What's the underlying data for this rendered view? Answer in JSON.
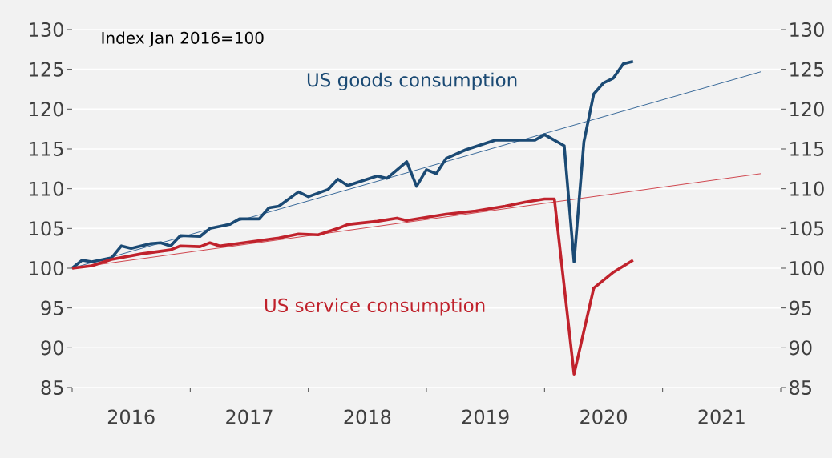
{
  "chart_data": {
    "type": "line",
    "annotations": [
      "Index Jan 2016=100"
    ],
    "xlim": [
      "2016-01",
      "2022-01"
    ],
    "xticks": [
      {
        "value": "2016-01",
        "label": null
      },
      {
        "value": "2016-07",
        "label": "2016"
      },
      {
        "value": "2017-01",
        "label": null
      },
      {
        "value": "2017-07",
        "label": "2017"
      },
      {
        "value": "2018-01",
        "label": null
      },
      {
        "value": "2018-07",
        "label": "2018"
      },
      {
        "value": "2019-01",
        "label": null
      },
      {
        "value": "2019-07",
        "label": "2019"
      },
      {
        "value": "2020-01",
        "label": null
      },
      {
        "value": "2020-07",
        "label": "2020"
      },
      {
        "value": "2021-01",
        "label": null
      },
      {
        "value": "2021-07",
        "label": "2021"
      },
      {
        "value": "2022-01",
        "label": null
      }
    ],
    "ylim": [
      85,
      130
    ],
    "yticks": [
      85,
      90,
      95,
      100,
      105,
      110,
      115,
      120,
      125,
      130
    ],
    "y2lim": [
      85,
      130
    ],
    "y2ticks": [
      85,
      90,
      95,
      100,
      105,
      110,
      115,
      120,
      125,
      130
    ],
    "grid": "y",
    "series": [
      {
        "type": "line",
        "color": "#3a6a9a",
        "x": [
          "2016-01",
          "2021-11"
        ],
        "values": [
          100,
          124.7
        ]
      },
      {
        "type": "line",
        "color": "#d0474f",
        "x": [
          "2016-01",
          "2021-11"
        ],
        "values": [
          100,
          111.9
        ]
      },
      {
        "name": "US goods consumption",
        "color": "#1b4a74",
        "x": [
          "2016-01",
          "2016-02",
          "2016-03",
          "2016-05",
          "2016-06",
          "2016-07",
          "2016-09",
          "2016-10",
          "2016-11",
          "2016-12",
          "2017-02",
          "2017-03",
          "2017-05",
          "2017-06",
          "2017-08",
          "2017-09",
          "2017-10",
          "2017-12",
          "2018-01",
          "2018-03",
          "2018-04",
          "2018-05",
          "2018-08",
          "2018-09",
          "2018-11",
          "2018-12",
          "2019-01",
          "2019-02",
          "2019-03",
          "2019-05",
          "2019-08",
          "2019-12",
          "2020-01",
          "2020-03",
          "2020-04",
          "2020-05",
          "2020-06",
          "2020-07",
          "2020-08",
          "2020-09",
          "2020-10"
        ],
        "values": [
          100.0,
          101.0,
          100.8,
          101.3,
          102.8,
          102.5,
          103.1,
          103.2,
          102.8,
          104.1,
          104.0,
          105.0,
          105.5,
          106.2,
          106.2,
          107.6,
          107.8,
          109.6,
          109.0,
          109.9,
          111.2,
          110.4,
          111.6,
          111.3,
          113.4,
          110.3,
          112.4,
          111.9,
          113.8,
          114.9,
          116.1,
          116.1,
          116.8,
          115.4,
          100.8,
          115.9,
          121.9,
          123.3,
          123.9,
          125.7,
          126.0
        ]
      },
      {
        "name": "US service consumption",
        "color": "#c0222c",
        "x": [
          "2016-01",
          "2016-03",
          "2016-05",
          "2016-08",
          "2016-11",
          "2016-12",
          "2017-02",
          "2017-03",
          "2017-04",
          "2017-07",
          "2017-10",
          "2017-12",
          "2018-02",
          "2018-04",
          "2018-05",
          "2018-08",
          "2018-10",
          "2018-11",
          "2019-03",
          "2019-06",
          "2019-09",
          "2019-11",
          "2020-01",
          "2020-02",
          "2020-04",
          "2020-06",
          "2020-08",
          "2020-10"
        ],
        "values": [
          100.0,
          100.3,
          101.1,
          101.8,
          102.3,
          102.8,
          102.7,
          103.2,
          102.8,
          103.3,
          103.8,
          104.3,
          104.2,
          105.0,
          105.5,
          105.9,
          106.3,
          106.0,
          106.8,
          107.2,
          107.8,
          108.3,
          108.7,
          108.7,
          86.7,
          97.5,
          99.5,
          101.0
        ]
      }
    ]
  }
}
